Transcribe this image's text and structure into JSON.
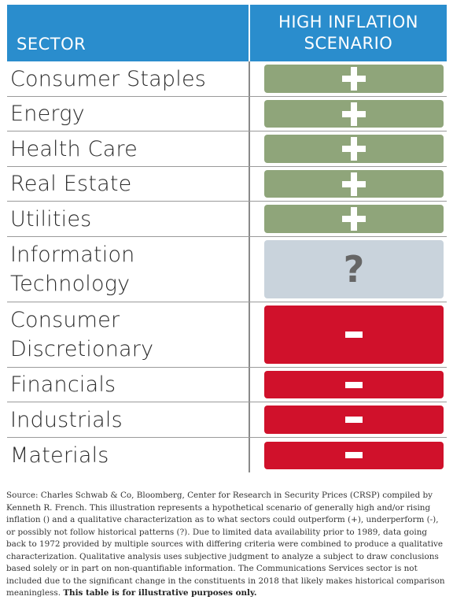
{
  "table": {
    "headers": {
      "sector": "SECTOR",
      "scenario_line1": "HIGH INFLATION",
      "scenario_line2": "SCENARIO"
    },
    "colors": {
      "header_bg": "#2a8dcd",
      "positive": "#8fa57a",
      "uncertain": "#c9d3dc",
      "negative": "#d0112b"
    },
    "rows": [
      {
        "sector_lines": [
          "Consumer Staples"
        ],
        "rating": "positive"
      },
      {
        "sector_lines": [
          "Energy"
        ],
        "rating": "positive"
      },
      {
        "sector_lines": [
          "Health Care"
        ],
        "rating": "positive"
      },
      {
        "sector_lines": [
          "Real Estate"
        ],
        "rating": "positive"
      },
      {
        "sector_lines": [
          "Utilities"
        ],
        "rating": "positive"
      },
      {
        "sector_lines": [
          "Information",
          "Technology"
        ],
        "rating": "uncertain"
      },
      {
        "sector_lines": [
          "Consumer",
          "Discretionary"
        ],
        "rating": "negative"
      },
      {
        "sector_lines": [
          "Financials"
        ],
        "rating": "negative"
      },
      {
        "sector_lines": [
          "Industrials"
        ],
        "rating": "negative"
      },
      {
        "sector_lines": [
          "Materials"
        ],
        "rating": "negative"
      }
    ],
    "symbols": {
      "uncertain": "?"
    }
  },
  "footnote": {
    "text": "Source: Charles Schwab & Co, Bloomberg, Center for Research in Security Prices (CRSP) compiled by Kenneth R. French. This illustration represents a hypothetical scenario of generally high and/or rising inflation () and a qualitative characterization as to what sectors could outperform (+), underperform (-), or possibly not follow historical patterns (?). Due to limited data availability prior to 1989, data going back to 1972 provided by multiple sources with differing criteria were combined to produce a qualitative characterization. Qualitative analysis uses subjective judgment to analyze a subject to draw conclusions based solely or in part on non-quantifiable information. The Communications Services sector is not included due to the significant change in the constituents in 2018 that likely makes historical comparison meaningless.",
    "bold": "This table is for illustrative purposes only."
  },
  "chart_data": {
    "type": "table",
    "columns": [
      "SECTOR",
      "HIGH INFLATION SCENARIO"
    ],
    "rows": [
      [
        "Consumer Staples",
        "+"
      ],
      [
        "Energy",
        "+"
      ],
      [
        "Health Care",
        "+"
      ],
      [
        "Real Estate",
        "+"
      ],
      [
        "Utilities",
        "+"
      ],
      [
        "Information Technology",
        "?"
      ],
      [
        "Consumer Discretionary",
        "-"
      ],
      [
        "Financials",
        "-"
      ],
      [
        "Industrials",
        "-"
      ],
      [
        "Materials",
        "-"
      ]
    ]
  }
}
